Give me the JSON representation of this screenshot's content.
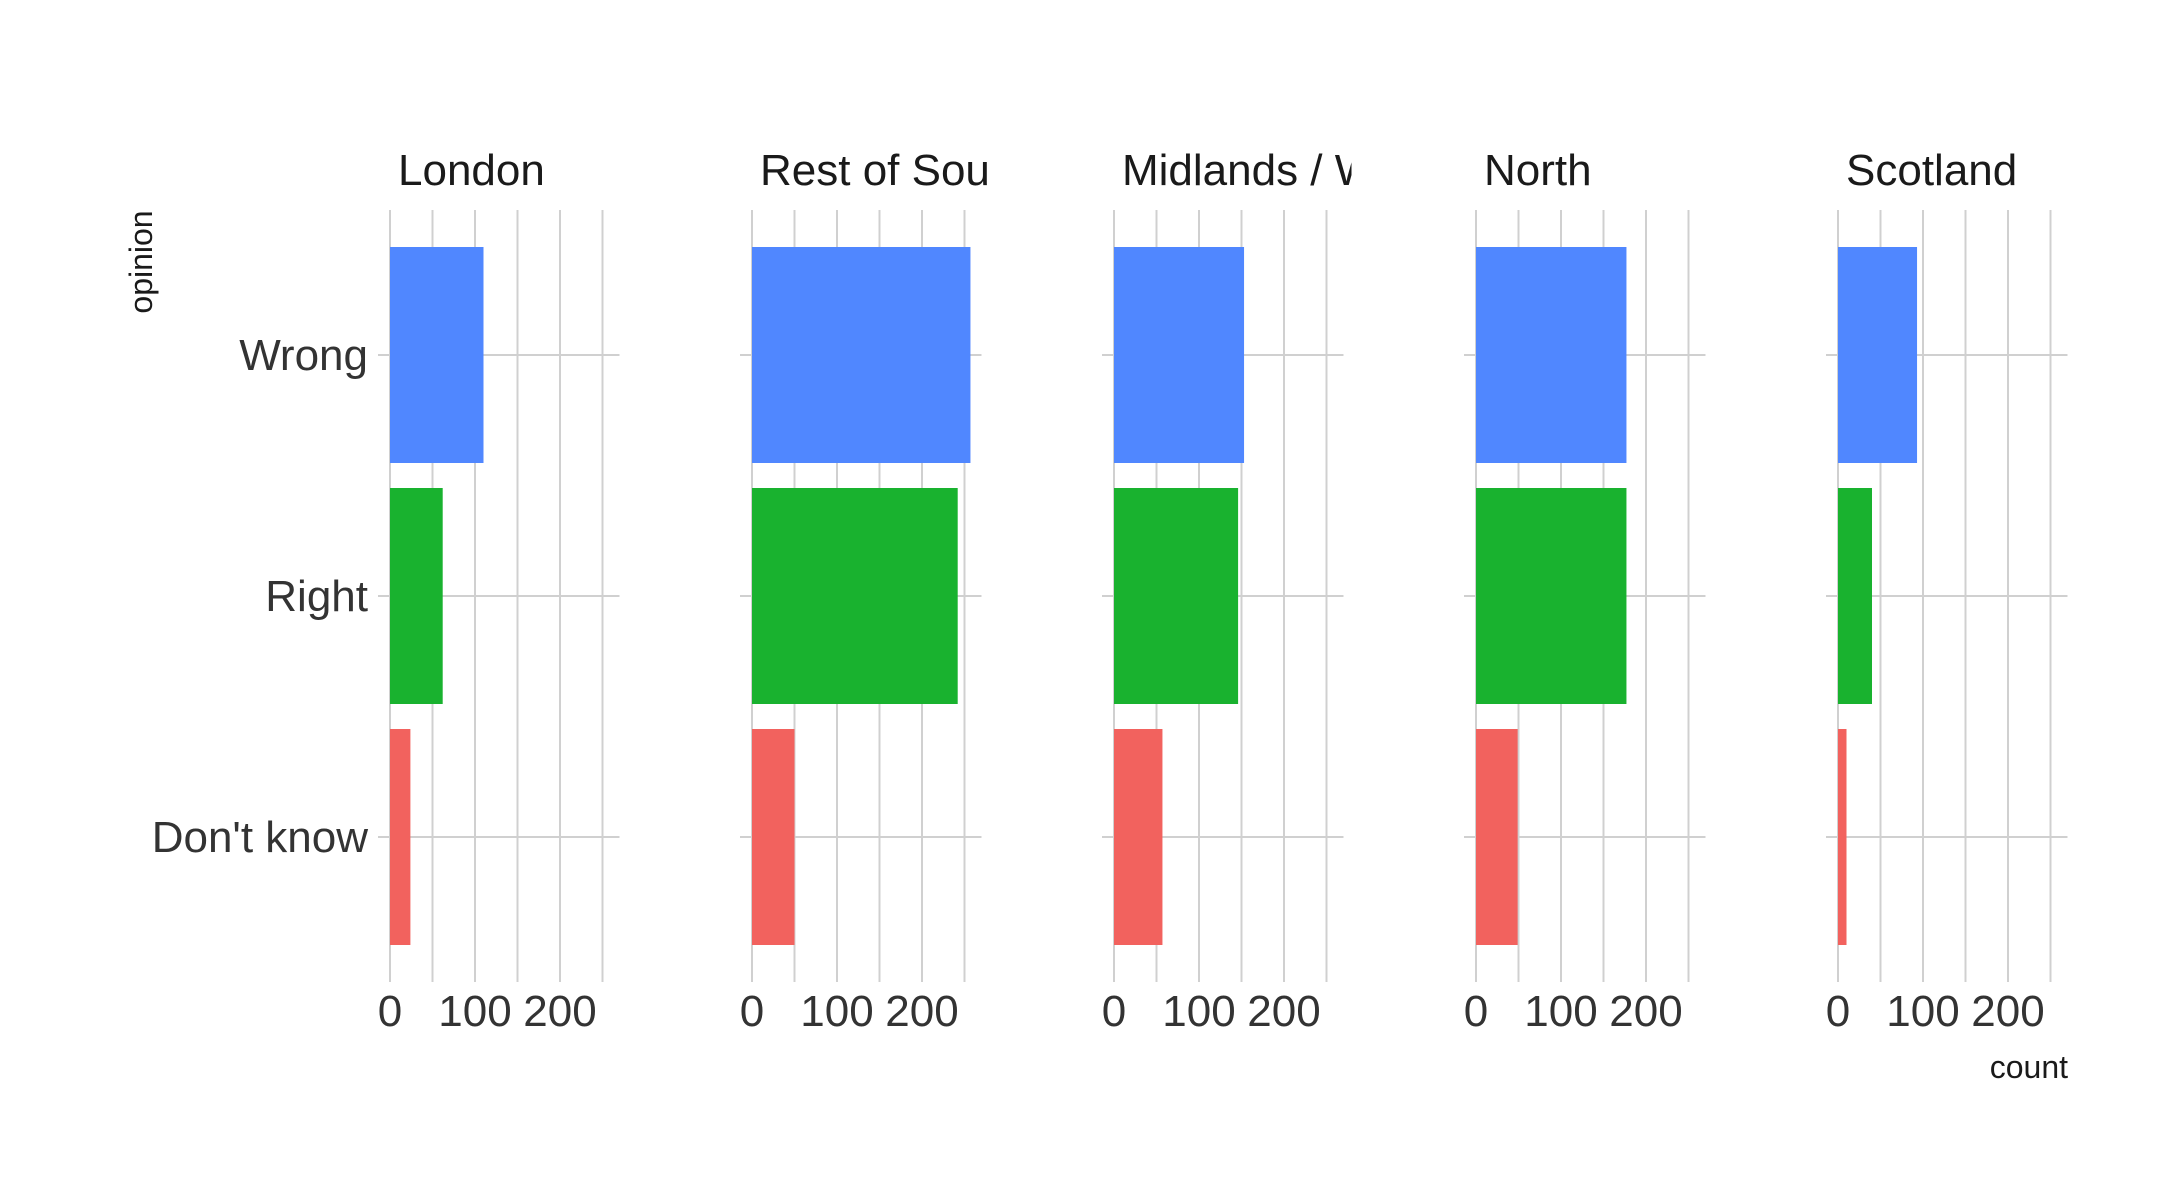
{
  "chart_data": {
    "type": "bar",
    "orientation": "horizontal",
    "facet_by": "region",
    "xlabel": "count",
    "ylabel": "opinion",
    "xlim": [
      0,
      270
    ],
    "x_ticks": [
      0,
      100,
      200
    ],
    "categories": [
      "Wrong",
      "Right",
      "Don't know"
    ],
    "colors": {
      "Wrong": "#5087FF",
      "Right": "#19B22F",
      "Don't know": "#F2625E"
    },
    "grid": true,
    "legend": "none",
    "panels": [
      {
        "title": "London",
        "values": [
          110,
          62,
          24
        ]
      },
      {
        "title": "Rest of Sout",
        "values": [
          257,
          242,
          50
        ]
      },
      {
        "title": "Midlands / W",
        "values": [
          153,
          146,
          57
        ]
      },
      {
        "title": "North",
        "values": [
          177,
          177,
          49
        ]
      },
      {
        "title": "Scotland",
        "values": [
          93,
          40,
          10
        ]
      }
    ]
  }
}
